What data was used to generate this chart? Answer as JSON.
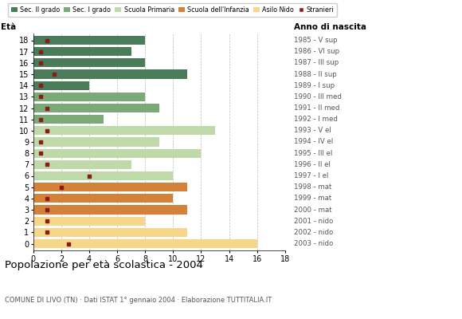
{
  "ages": [
    18,
    17,
    16,
    15,
    14,
    13,
    12,
    11,
    10,
    9,
    8,
    7,
    6,
    5,
    4,
    3,
    2,
    1,
    0
  ],
  "bar_values": [
    8,
    7,
    8,
    11,
    4,
    8,
    9,
    5,
    13,
    9,
    12,
    7,
    10,
    11,
    10,
    11,
    8,
    11,
    16
  ],
  "stranieri": [
    1,
    0.5,
    0.5,
    1.5,
    0.5,
    0.5,
    1,
    0.5,
    1,
    0.5,
    0.5,
    1,
    4,
    2,
    1,
    1,
    1,
    1,
    2.5
  ],
  "anno_nascita": [
    "1985 - V sup",
    "1986 - VI sup",
    "1987 - III sup",
    "1988 - II sup",
    "1989 - I sup",
    "1990 - III med",
    "1991 - II med",
    "1992 - I med",
    "1993 - V el",
    "1994 - IV el",
    "1995 - III el",
    "1996 - II el",
    "1997 - I el",
    "1998 - mat",
    "1999 - mat",
    "2000 - mat",
    "2001 - nido",
    "2002 - nido",
    "2003 - nido"
  ],
  "colors": {
    "sec2": "#4a7c59",
    "sec1": "#7aaa78",
    "primaria": "#c0d9a8",
    "infanzia": "#d4813a",
    "nido": "#f5d68a",
    "stranieri": "#8b1a1a"
  },
  "legend_labels": [
    "Sec. II grado",
    "Sec. I grado",
    "Scuola Primaria",
    "Scuola dell'Infanzia",
    "Asilo Nido",
    "Stranieri"
  ],
  "title": "Popolazione per età scolastica - 2004",
  "subtitle": "COMUNE DI LIVO (TN) · Dati ISTAT 1° gennaio 2004 · Elaborazione TUTTITALIA.IT",
  "label_eta": "Età",
  "label_anno": "Anno di nascita",
  "xlim": [
    0,
    18
  ],
  "bgcolor": "#ffffff"
}
